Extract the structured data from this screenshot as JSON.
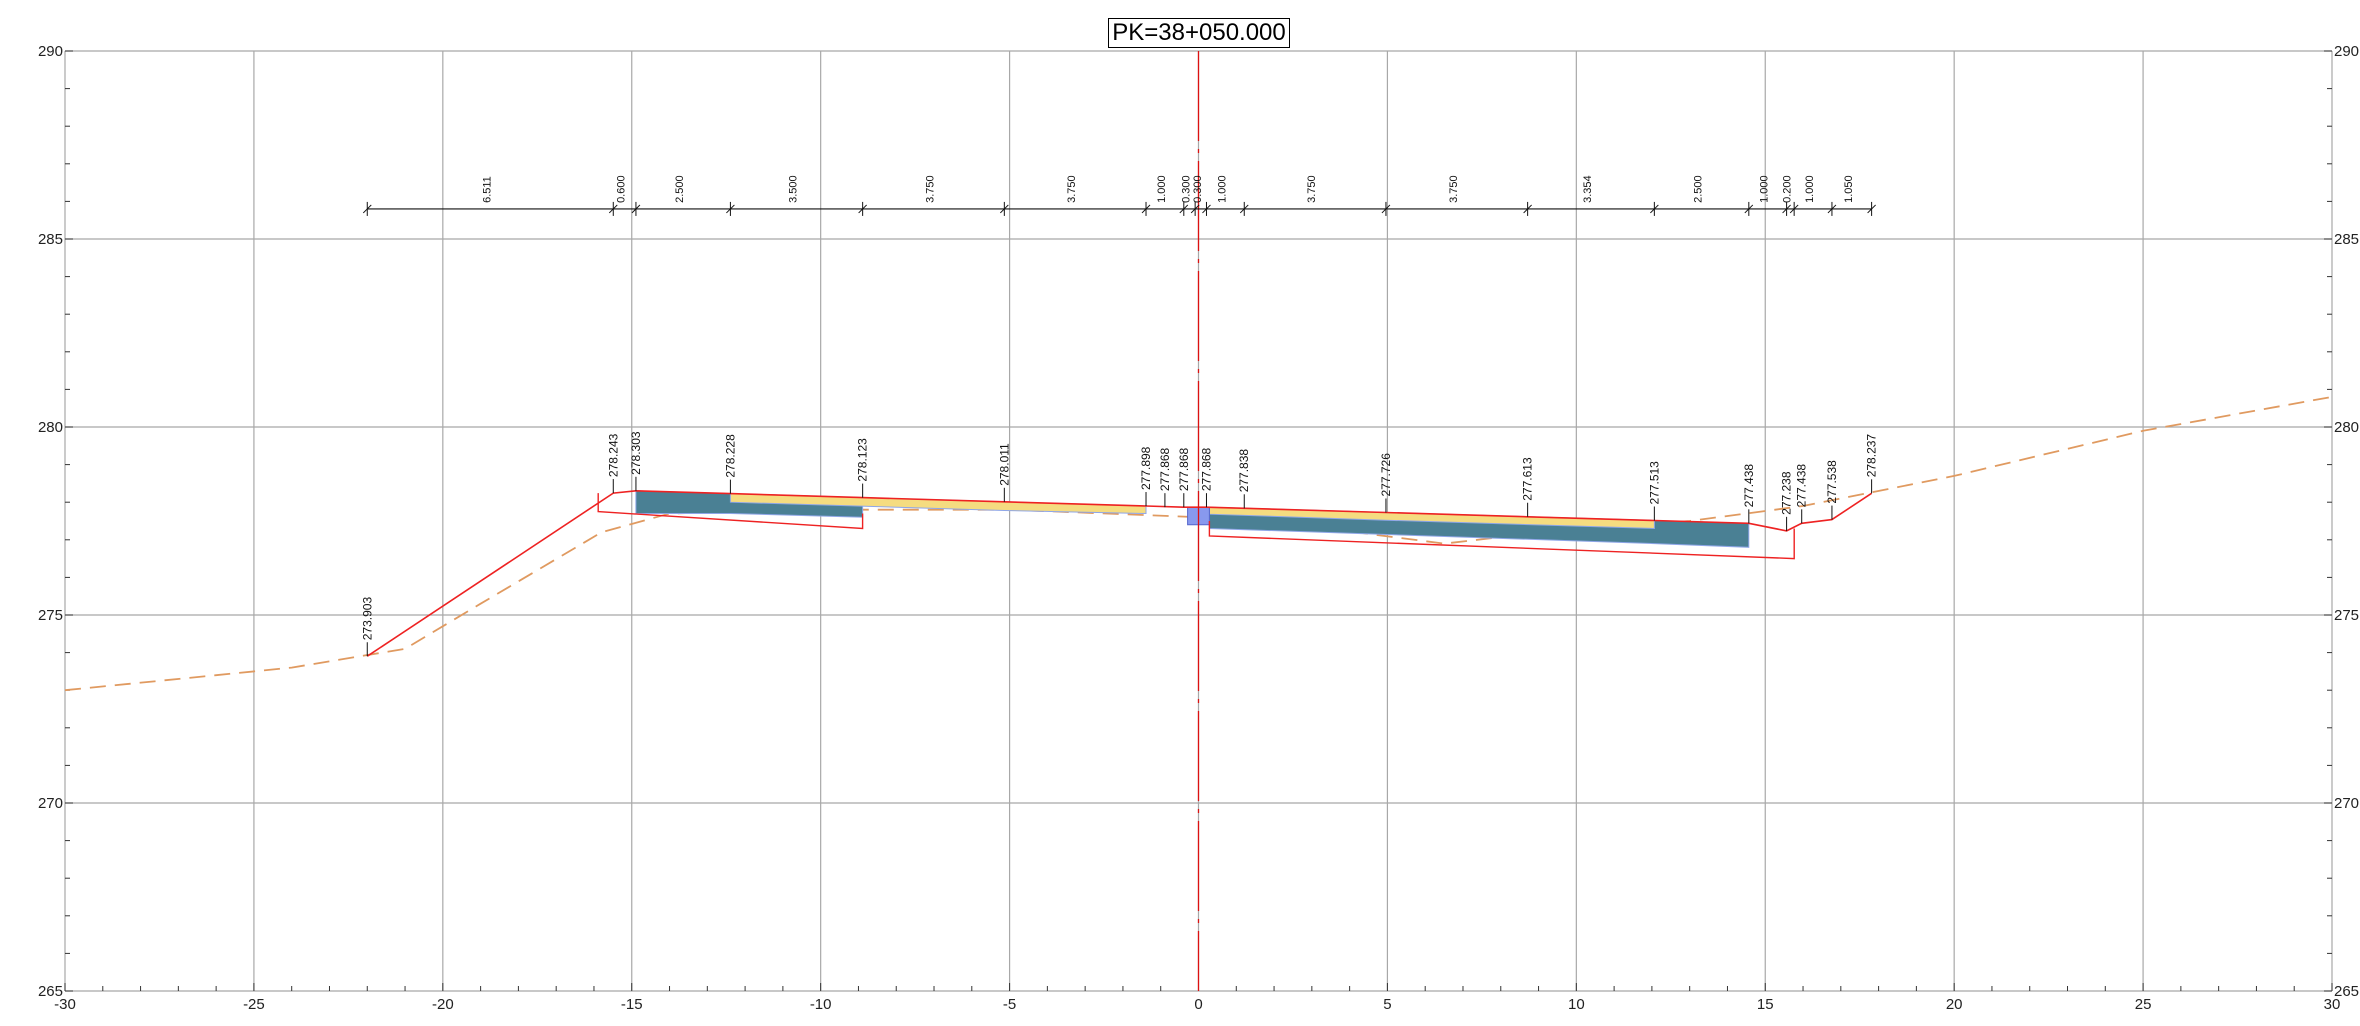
{
  "title": "PK=38+050.000",
  "axes": {
    "x_range": [
      -30,
      30
    ],
    "y_range": [
      265,
      290
    ],
    "x_major_step": 5,
    "y_major_step": 5,
    "x_ticks": [
      "-30",
      "-25",
      "-20",
      "-15",
      "-10",
      "-5",
      "0",
      "5",
      "10",
      "15",
      "20",
      "25",
      "30"
    ],
    "y_ticks": [
      "265",
      "270",
      "275",
      "280",
      "285",
      "290"
    ],
    "grid": true
  },
  "dimension_line": {
    "elevation": 285.8,
    "stations": [
      -22.0,
      -15.489,
      -14.889,
      -12.389,
      -8.889,
      -5.139,
      -1.389,
      -0.389,
      -0.089,
      0.211,
      1.211,
      4.961,
      8.711,
      12.065,
      14.565,
      15.565,
      15.765,
      16.765,
      17.815
    ],
    "labels": [
      "6.511",
      "0.600",
      "2.500",
      "3.500",
      "3.750",
      "3.750",
      "1.000",
      "0.300",
      "0.300",
      "1.000",
      "3.750",
      "3.750",
      "3.354",
      "2.500",
      "1.000",
      "0.200",
      "1.000",
      "1.050"
    ]
  },
  "elevation_labels": [
    {
      "x": -22.0,
      "y": 273.903,
      "text": "273.903"
    },
    {
      "x": -15.489,
      "y": 278.243,
      "text": "278.243"
    },
    {
      "x": -14.889,
      "y": 278.303,
      "text": "278.303"
    },
    {
      "x": -12.389,
      "y": 278.228,
      "text": "278.228"
    },
    {
      "x": -8.889,
      "y": 278.123,
      "text": "278.123"
    },
    {
      "x": -5.139,
      "y": 278.011,
      "text": "278.011"
    },
    {
      "x": -1.389,
      "y": 277.898,
      "text": "277.898"
    },
    {
      "x": -0.889,
      "y": 277.868,
      "text": "277.868"
    },
    {
      "x": -0.389,
      "y": 277.868,
      "text": "277.868"
    },
    {
      "x": 0.211,
      "y": 277.868,
      "text": "277.868"
    },
    {
      "x": 1.211,
      "y": 277.838,
      "text": "277.838"
    },
    {
      "x": 4.961,
      "y": 277.726,
      "text": "277.726"
    },
    {
      "x": 8.711,
      "y": 277.613,
      "text": "277.613"
    },
    {
      "x": 12.065,
      "y": 277.513,
      "text": "277.513"
    },
    {
      "x": 14.565,
      "y": 277.438,
      "text": "277.438"
    },
    {
      "x": 15.565,
      "y": 277.238,
      "text": "277.238"
    },
    {
      "x": 15.965,
      "y": 277.438,
      "text": "277.438"
    },
    {
      "x": 16.765,
      "y": 277.538,
      "text": "277.538"
    },
    {
      "x": 17.815,
      "y": 278.237,
      "text": "278.237"
    }
  ],
  "geometry": {
    "design_outline": [
      [
        -22.0,
        273.903
      ],
      [
        -15.489,
        278.243
      ],
      [
        -14.889,
        278.303
      ],
      [
        -12.389,
        278.228
      ],
      [
        -8.889,
        278.123
      ],
      [
        -5.139,
        278.011
      ],
      [
        -1.389,
        277.898
      ],
      [
        -0.389,
        277.868
      ],
      [
        0.211,
        277.868
      ],
      [
        4.961,
        277.726
      ],
      [
        8.711,
        277.613
      ],
      [
        12.065,
        277.513
      ],
      [
        14.565,
        277.438
      ],
      [
        15.565,
        277.238
      ],
      [
        15.965,
        277.438
      ],
      [
        16.765,
        277.538
      ],
      [
        17.815,
        278.237
      ]
    ],
    "subgrade_left": [
      [
        -15.889,
        278.243
      ],
      [
        -15.889,
        277.75
      ],
      [
        -8.889,
        277.3
      ],
      [
        -8.889,
        277.7
      ]
    ],
    "subgrade_right": [
      [
        0.289,
        277.5
      ],
      [
        0.289,
        277.1
      ],
      [
        15.765,
        276.5
      ],
      [
        15.765,
        277.3
      ]
    ],
    "existing_ground": [
      [
        -30,
        273.0
      ],
      [
        -26,
        273.4
      ],
      [
        -24,
        273.6
      ],
      [
        -21,
        274.1
      ],
      [
        -19,
        275.3
      ],
      [
        -15.8,
        277.2
      ],
      [
        -14,
        277.7
      ],
      [
        -10,
        277.8
      ],
      [
        -5,
        277.8
      ],
      [
        0,
        277.6
      ],
      [
        3,
        277.35
      ],
      [
        6.5,
        276.9
      ],
      [
        10,
        277.3
      ],
      [
        13,
        277.5
      ],
      [
        16,
        277.9
      ],
      [
        20,
        278.7
      ],
      [
        25,
        279.9
      ],
      [
        30,
        280.8
      ]
    ],
    "pavement_left": [
      [
        -14.889,
        278.303
      ],
      [
        -12.389,
        278.228
      ],
      [
        -8.889,
        278.123
      ],
      [
        -8.889,
        277.6
      ],
      [
        -12.389,
        277.7
      ],
      [
        -14.889,
        277.7
      ]
    ],
    "pavement_right": [
      [
        0.289,
        277.866
      ],
      [
        12.065,
        277.513
      ],
      [
        14.565,
        277.438
      ],
      [
        14.565,
        276.8
      ],
      [
        12.065,
        276.9
      ],
      [
        0.289,
        277.3
      ]
    ],
    "yellow_left": [
      [
        -12.389,
        278.228
      ],
      [
        -5.139,
        278.011
      ],
      [
        -1.389,
        277.898
      ],
      [
        -1.389,
        277.7
      ],
      [
        -5.139,
        277.78
      ],
      [
        -12.389,
        278.0
      ]
    ],
    "yellow_right": [
      [
        0.289,
        277.866
      ],
      [
        4.961,
        277.726
      ],
      [
        12.065,
        277.513
      ],
      [
        12.065,
        277.3
      ],
      [
        4.961,
        277.52
      ],
      [
        0.289,
        277.68
      ]
    ],
    "median": [
      [
        -0.289,
        277.868
      ],
      [
        0.289,
        277.868
      ],
      [
        0.289,
        277.4
      ],
      [
        -0.289,
        277.4
      ]
    ]
  },
  "colors": {
    "grid": "#a8a8a8",
    "design_line": "#ee2222",
    "existing_ground": "#e09a60",
    "pavement": "#4a8094",
    "surface_layer": "#f5dc80",
    "surface_edge": "#8ea6e8",
    "median": "#8899ee",
    "axis_line": "#dd1111"
  }
}
